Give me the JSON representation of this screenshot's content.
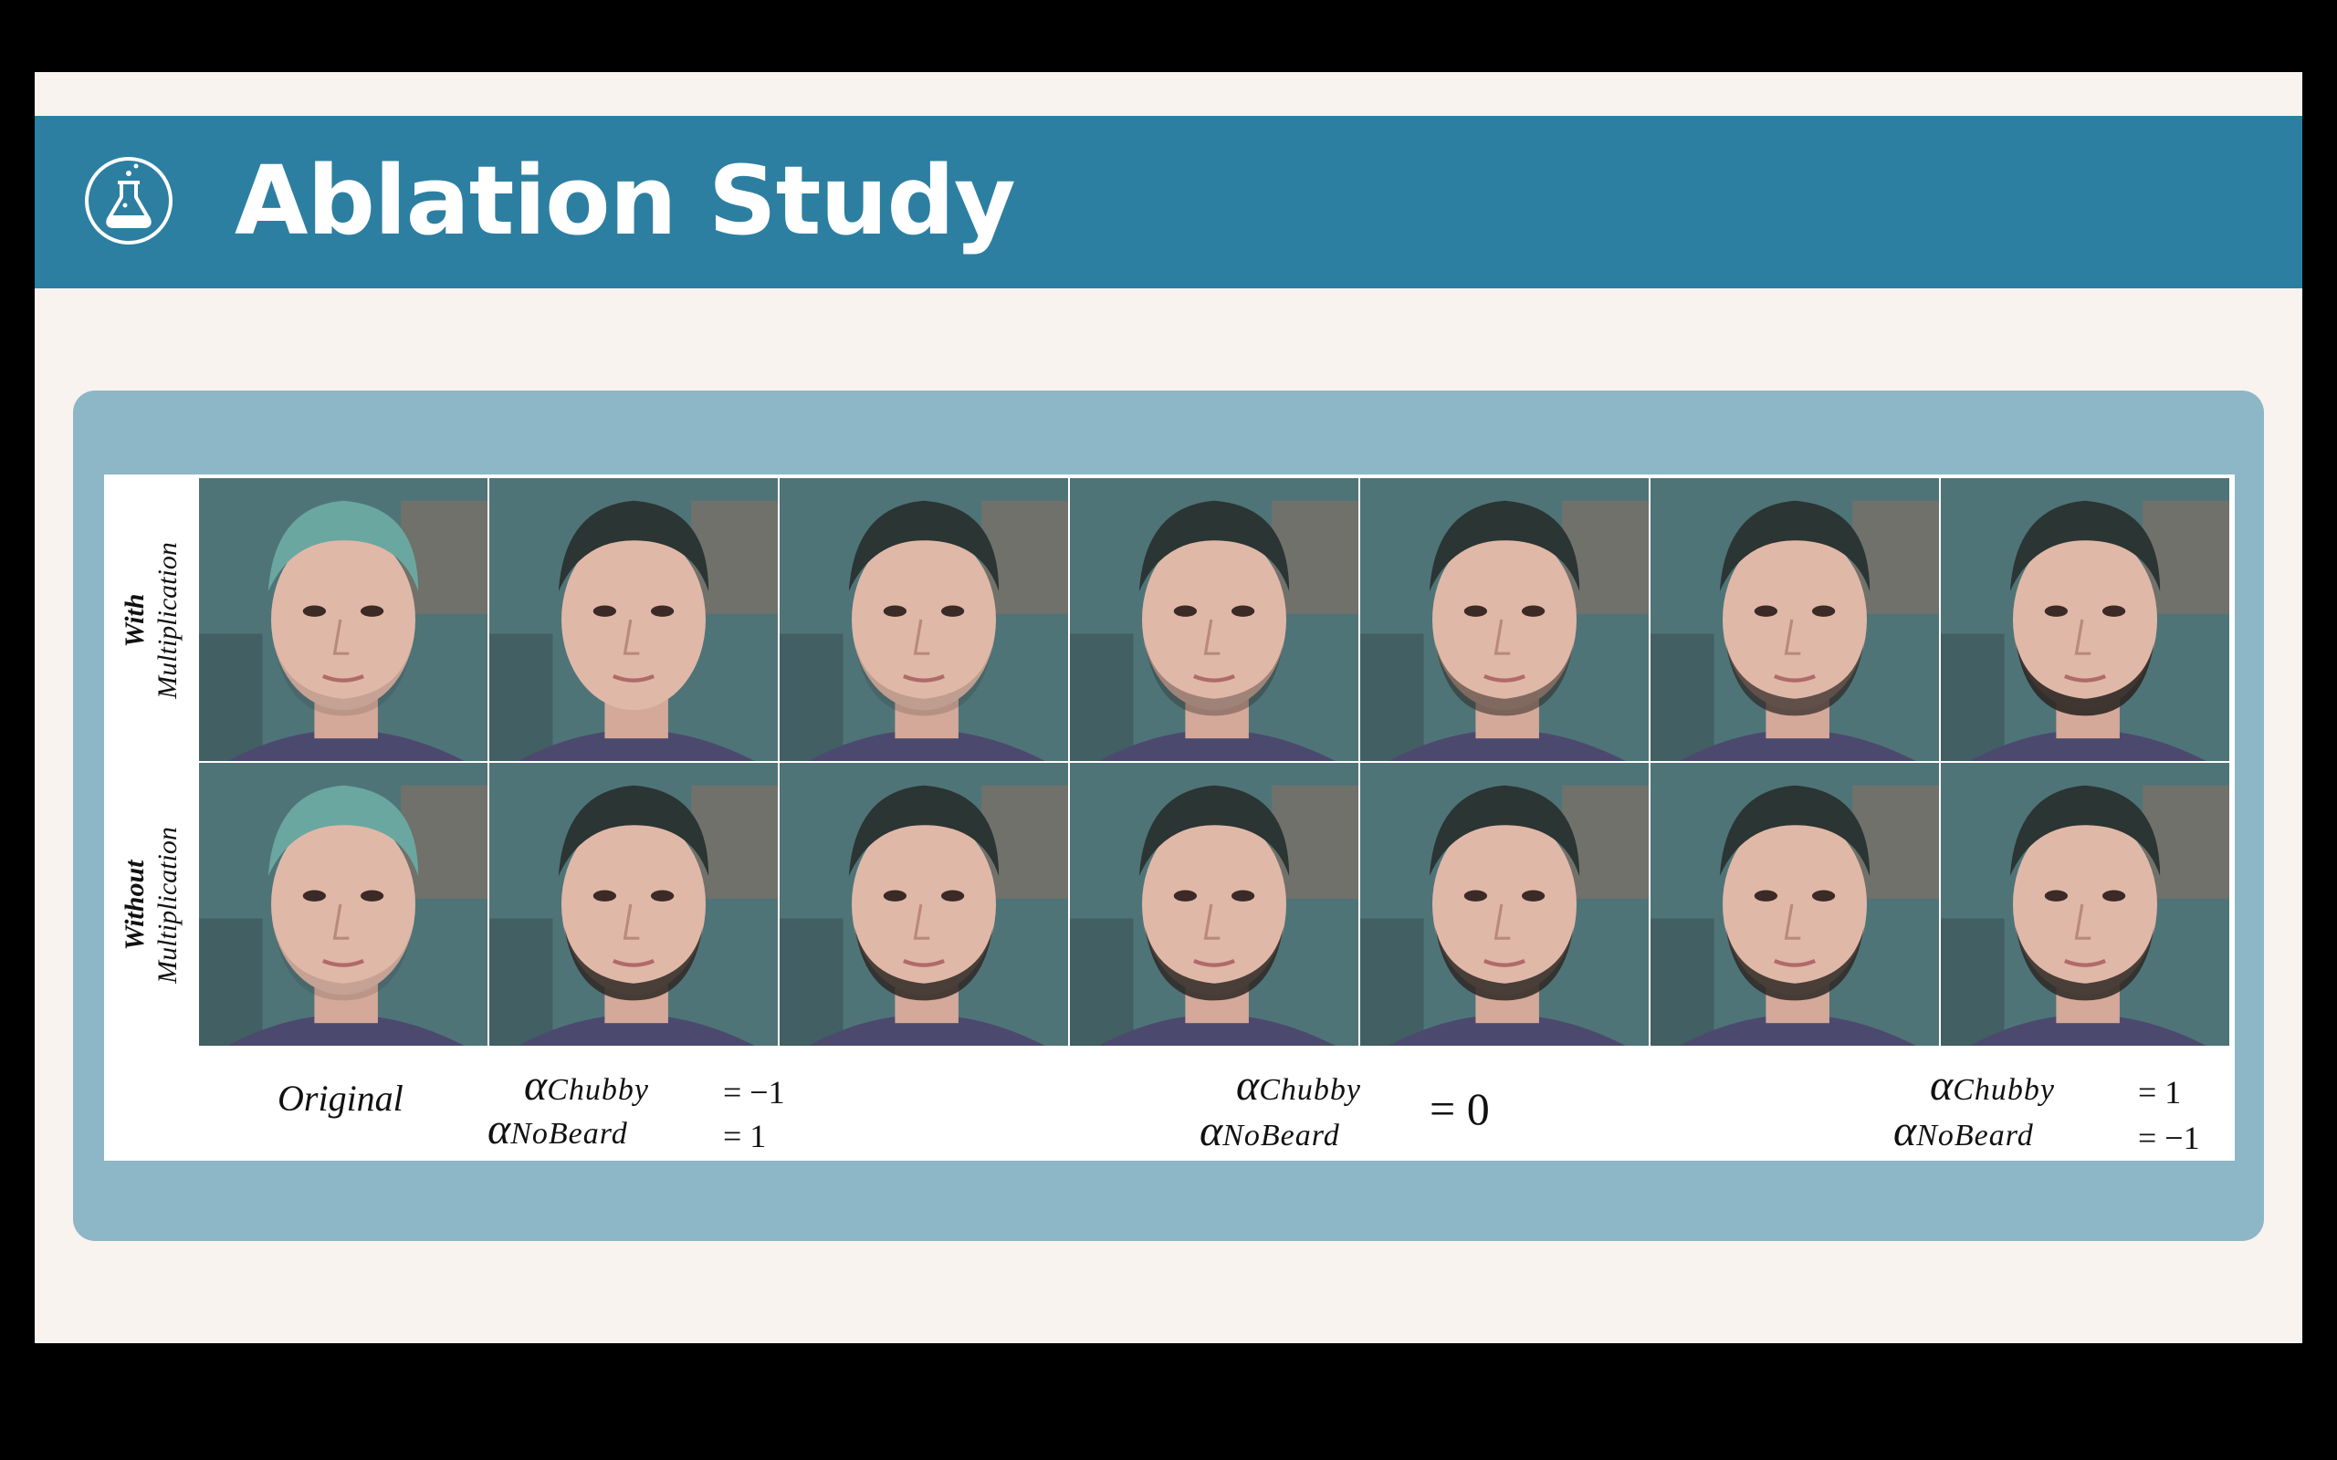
{
  "slide": {
    "title": "Ablation Study",
    "icon": "flask-icon",
    "accent_color": "#2c7fa1",
    "panel_color": "#8db6c7"
  },
  "figure": {
    "rows": [
      {
        "label_bold": "With",
        "label_normal": "Multiplication"
      },
      {
        "label_bold": "Without",
        "label_normal": "Multiplication"
      }
    ],
    "columns_per_row": 7,
    "captions": {
      "original": "Original",
      "left": {
        "alpha": "α",
        "sub1": "Chubby",
        "val1": "= −1",
        "sub2": "NoBeard",
        "val2": "= 1"
      },
      "middle": {
        "alpha": "α",
        "sub1": "Chubby",
        "sub2": "NoBeard",
        "val": "= 0"
      },
      "right": {
        "alpha": "α",
        "sub1": "Chubby",
        "val1": "= 1",
        "sub2": "NoBeard",
        "val2": "= −1"
      }
    }
  }
}
